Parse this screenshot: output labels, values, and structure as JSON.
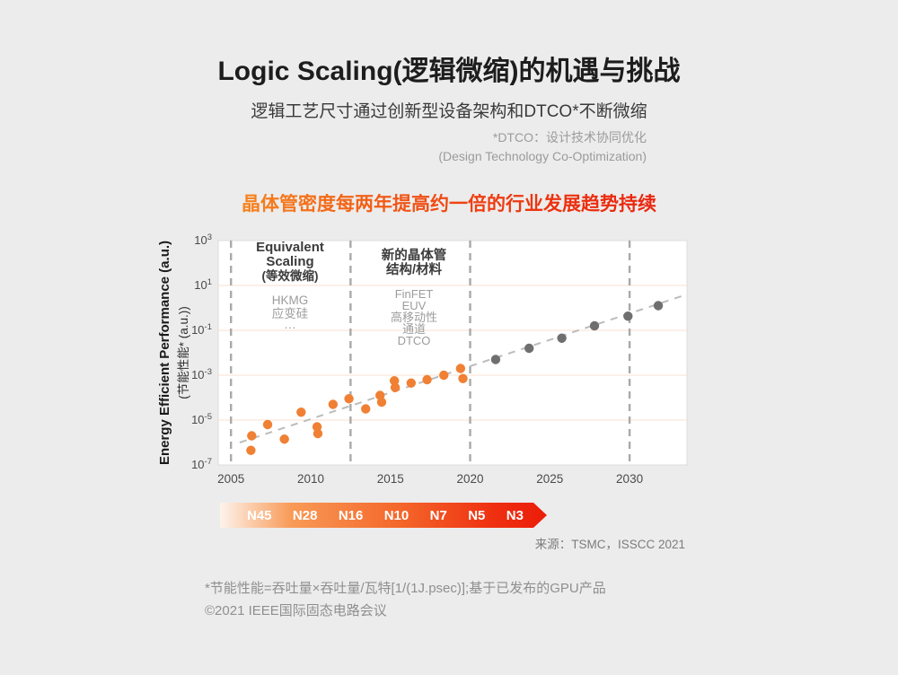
{
  "page": {
    "background": "#ececec"
  },
  "header": {
    "title": "Logic Scaling(逻辑微缩)的机遇与挑战",
    "subtitle": "逻辑工艺尺寸通过创新型设备架构和DTCO*不断微缩",
    "dtco_note": {
      "line1": "*DTCO：设计技术协同优化",
      "line2": "(Design Technology Co-Optimization)"
    },
    "headline": "晶体管密度每两年提高约一倍的行业发展趋势持续",
    "headline_gradient": [
      "#f6831d",
      "#e9250e"
    ]
  },
  "chart_data": {
    "type": "scatter",
    "y_axis_title_en": "Energy Efficient Performance (a.u.)",
    "y_axis_title_cn": "(节能性能* (a.u.))",
    "y_scale": "log10",
    "x_ticks": [
      2005,
      2010,
      2015,
      2020,
      2025,
      2030
    ],
    "y_tick_exponents": [
      3,
      1,
      -1,
      -3,
      -5,
      -7
    ],
    "x_range": [
      2004.2,
      2033.6
    ],
    "y_exponent_range": [
      -7,
      3
    ],
    "grid_line_exponents": [
      1,
      -1,
      -3,
      -5
    ],
    "grid_color": "#f8e2d2",
    "divider_years": [
      2005,
      2012.5,
      2020,
      2030
    ],
    "divider_color": "#a9a9a9",
    "zones": [
      {
        "title_line1": "Equivalent",
        "title_line2": "Scaling",
        "title_line3": "(等效微缩)",
        "items": [
          "HKMG",
          "应变硅",
          "···"
        ]
      },
      {
        "title_line1": "新的晶体管",
        "title_line2": "结构/材料",
        "items": [
          "FinFET",
          "EUV",
          "高移动性",
          "通道",
          "DTCO"
        ]
      }
    ],
    "series": [
      {
        "id": "published-gpu",
        "color": "#f08034",
        "points": [
          [
            2006.25,
            -6.35
          ],
          [
            2006.3,
            -5.7
          ],
          [
            2007.3,
            -5.2
          ],
          [
            2008.35,
            -5.85
          ],
          [
            2009.4,
            -4.65
          ],
          [
            2010.4,
            -5.3
          ],
          [
            2010.45,
            -5.6
          ],
          [
            2011.4,
            -4.3
          ],
          [
            2012.4,
            -4.05
          ],
          [
            2013.45,
            -4.5
          ],
          [
            2014.35,
            -3.9
          ],
          [
            2014.45,
            -4.2
          ],
          [
            2015.25,
            -3.25
          ],
          [
            2015.3,
            -3.55
          ],
          [
            2016.3,
            -3.35
          ],
          [
            2017.3,
            -3.2
          ],
          [
            2018.35,
            -3.0
          ],
          [
            2019.4,
            -2.7
          ],
          [
            2019.55,
            -3.15
          ]
        ]
      },
      {
        "id": "projected",
        "color": "#6f6f6f",
        "points": [
          [
            2021.6,
            -2.3
          ],
          [
            2023.7,
            -1.8
          ],
          [
            2025.75,
            -1.35
          ],
          [
            2027.8,
            -0.8
          ],
          [
            2029.9,
            -0.37
          ],
          [
            2031.8,
            0.1
          ]
        ]
      }
    ],
    "trend_line": {
      "from": [
        2005.55,
        -6.0
      ],
      "to": [
        2033.6,
        0.6
      ],
      "color": "#bcbcbc",
      "style": "dashed"
    }
  },
  "process_nodes": {
    "labels": [
      "N45",
      "N28",
      "N16",
      "N10",
      "N7",
      "N5",
      "N3"
    ],
    "gradient": [
      "#fdf3ec",
      "#f4672a",
      "#ec1c09"
    ]
  },
  "source_note": "来源：TSMC，ISSCC 2021",
  "footnotes": {
    "line1": "*节能性能=吞吐量×吞吐量/瓦特[1/(1J.psec)];基于已发布的GPU产品",
    "line2": "©2021 IEEE国际固态电路会议"
  }
}
